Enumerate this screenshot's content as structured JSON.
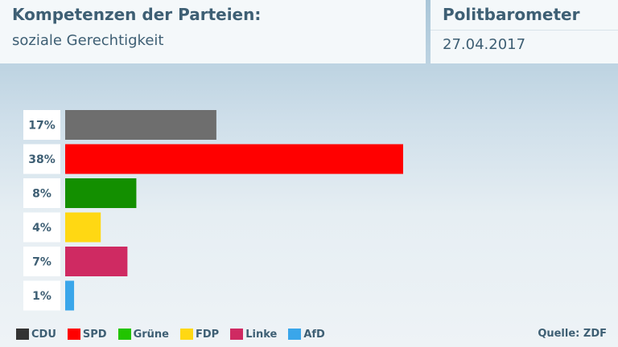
{
  "header": {
    "title": "Kompetenzen der Parteien:",
    "subtitle": "soziale Gerechtigkeit",
    "brand": "Politbarometer",
    "date": "27.04.2017"
  },
  "chart_data": {
    "type": "bar",
    "orientation": "horizontal",
    "title": "Kompetenzen der Parteien:",
    "subtitle": "soziale Gerechtigkeit",
    "categories": [
      "CDU",
      "SPD",
      "Grüne",
      "FDP",
      "Linke",
      "AfD"
    ],
    "values": [
      17,
      38,
      8,
      4,
      7,
      1
    ],
    "value_labels": [
      "17%",
      "38%",
      "8%",
      "4%",
      "7%",
      "1%"
    ],
    "colors": [
      "#6e6e6e",
      "#ff0000",
      "#138f00",
      "#ffd813",
      "#cf2a62",
      "#3aa6ea"
    ],
    "xlim": [
      0,
      38
    ],
    "grid": false,
    "legend_placement": "bottom-left"
  },
  "legend": {
    "items": [
      {
        "label": "CDU",
        "color": "#333333"
      },
      {
        "label": "SPD",
        "color": "#ff0000"
      },
      {
        "label": "Grüne",
        "color": "#22c400"
      },
      {
        "label": "FDP",
        "color": "#ffd813"
      },
      {
        "label": "Linke",
        "color": "#cf2a62"
      },
      {
        "label": "AfD",
        "color": "#3aa6ea"
      }
    ]
  },
  "footer": {
    "source": "Quelle: ZDF"
  }
}
